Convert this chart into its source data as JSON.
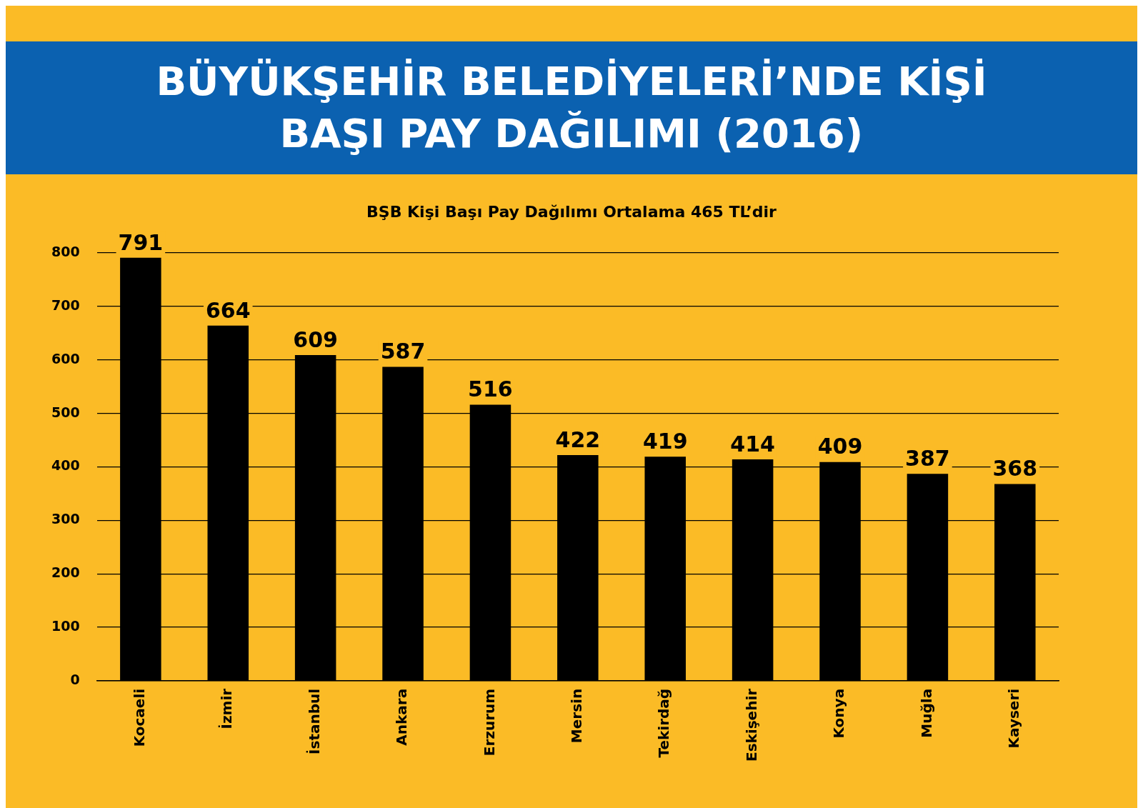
{
  "chart_data": {
    "type": "bar",
    "title": "BÜYÜKŞEHİR BELEDİYELERİ’NDE KİŞİ BAŞI PAY DAĞILIMI (2016)",
    "subtitle": "BŞB Kişi Başı Pay Dağılımı Ortalama 465 TL’dir",
    "categories": [
      "Kocaeli",
      "İzmir",
      "İstanbul",
      "Ankara",
      "Erzurum",
      "Mersin",
      "Tekirdağ",
      "Eskişehir",
      "Konya",
      "Muğla",
      "Kayseri"
    ],
    "values": [
      791,
      664,
      609,
      587,
      516,
      422,
      419,
      414,
      409,
      387,
      368
    ],
    "color": "#000000",
    "ylim": [
      0,
      800
    ],
    "yticks": [
      0,
      100,
      200,
      300,
      400,
      500,
      600,
      700,
      800
    ],
    "grid": "y",
    "data_labels": true
  }
}
